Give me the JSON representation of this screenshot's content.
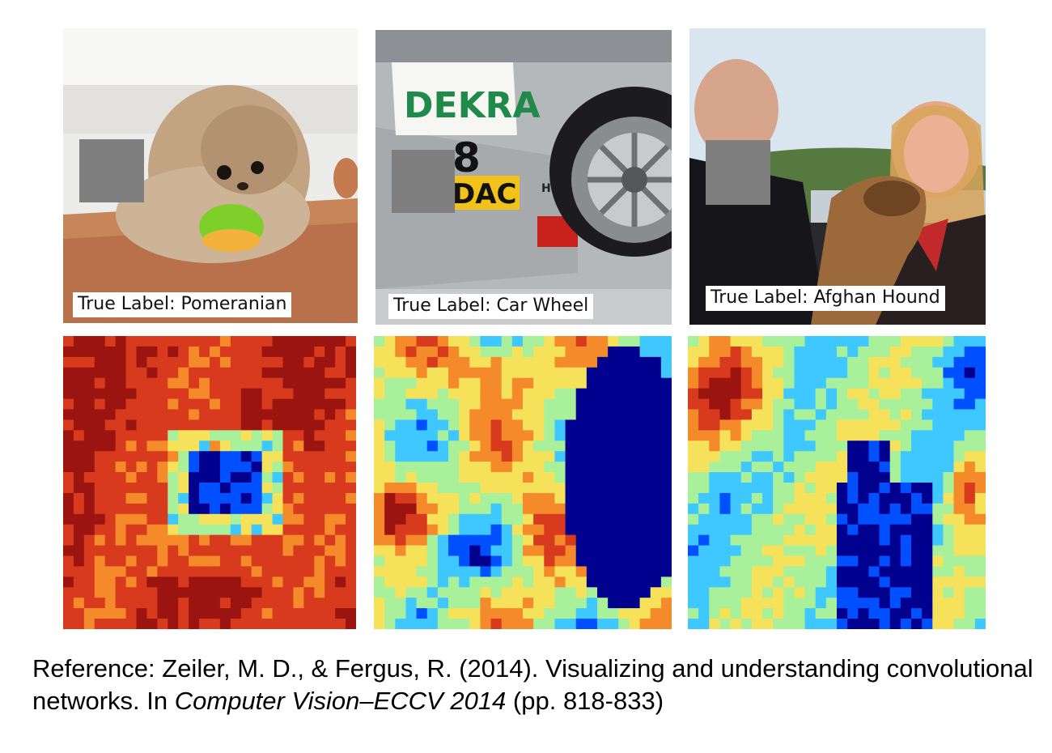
{
  "panels": [
    {
      "true_label": "True Label: Pomeranian",
      "photo_icon": "pomeranian-dog-photo"
    },
    {
      "true_label": "True Label: Car Wheel",
      "photo_icon": "race-car-wheel-photo",
      "car_sticker_text": "DEKRA",
      "car_number": "8",
      "car_sponsor_text": "DAC",
      "car_small_text": "H&R"
    },
    {
      "true_label": "True Label: Afghan Hound",
      "photo_icon": "people-and-afghan-hound-photo"
    }
  ],
  "occluder_color": "#7f7f7f",
  "heatmap_colors": [
    "#00008f",
    "#0050ff",
    "#3fc8ff",
    "#a8f09a",
    "#f5e25a",
    "#f58a2a",
    "#d83a1e",
    "#9c1410"
  ],
  "reference": {
    "prefix": "Reference: Zeiler, M. D., & Fergus, R. (2014). Visualizing and understanding convolutional networks. In ",
    "venue": "Computer Vision–ECCV 2014",
    "suffix": " (pp. 818-833)"
  }
}
